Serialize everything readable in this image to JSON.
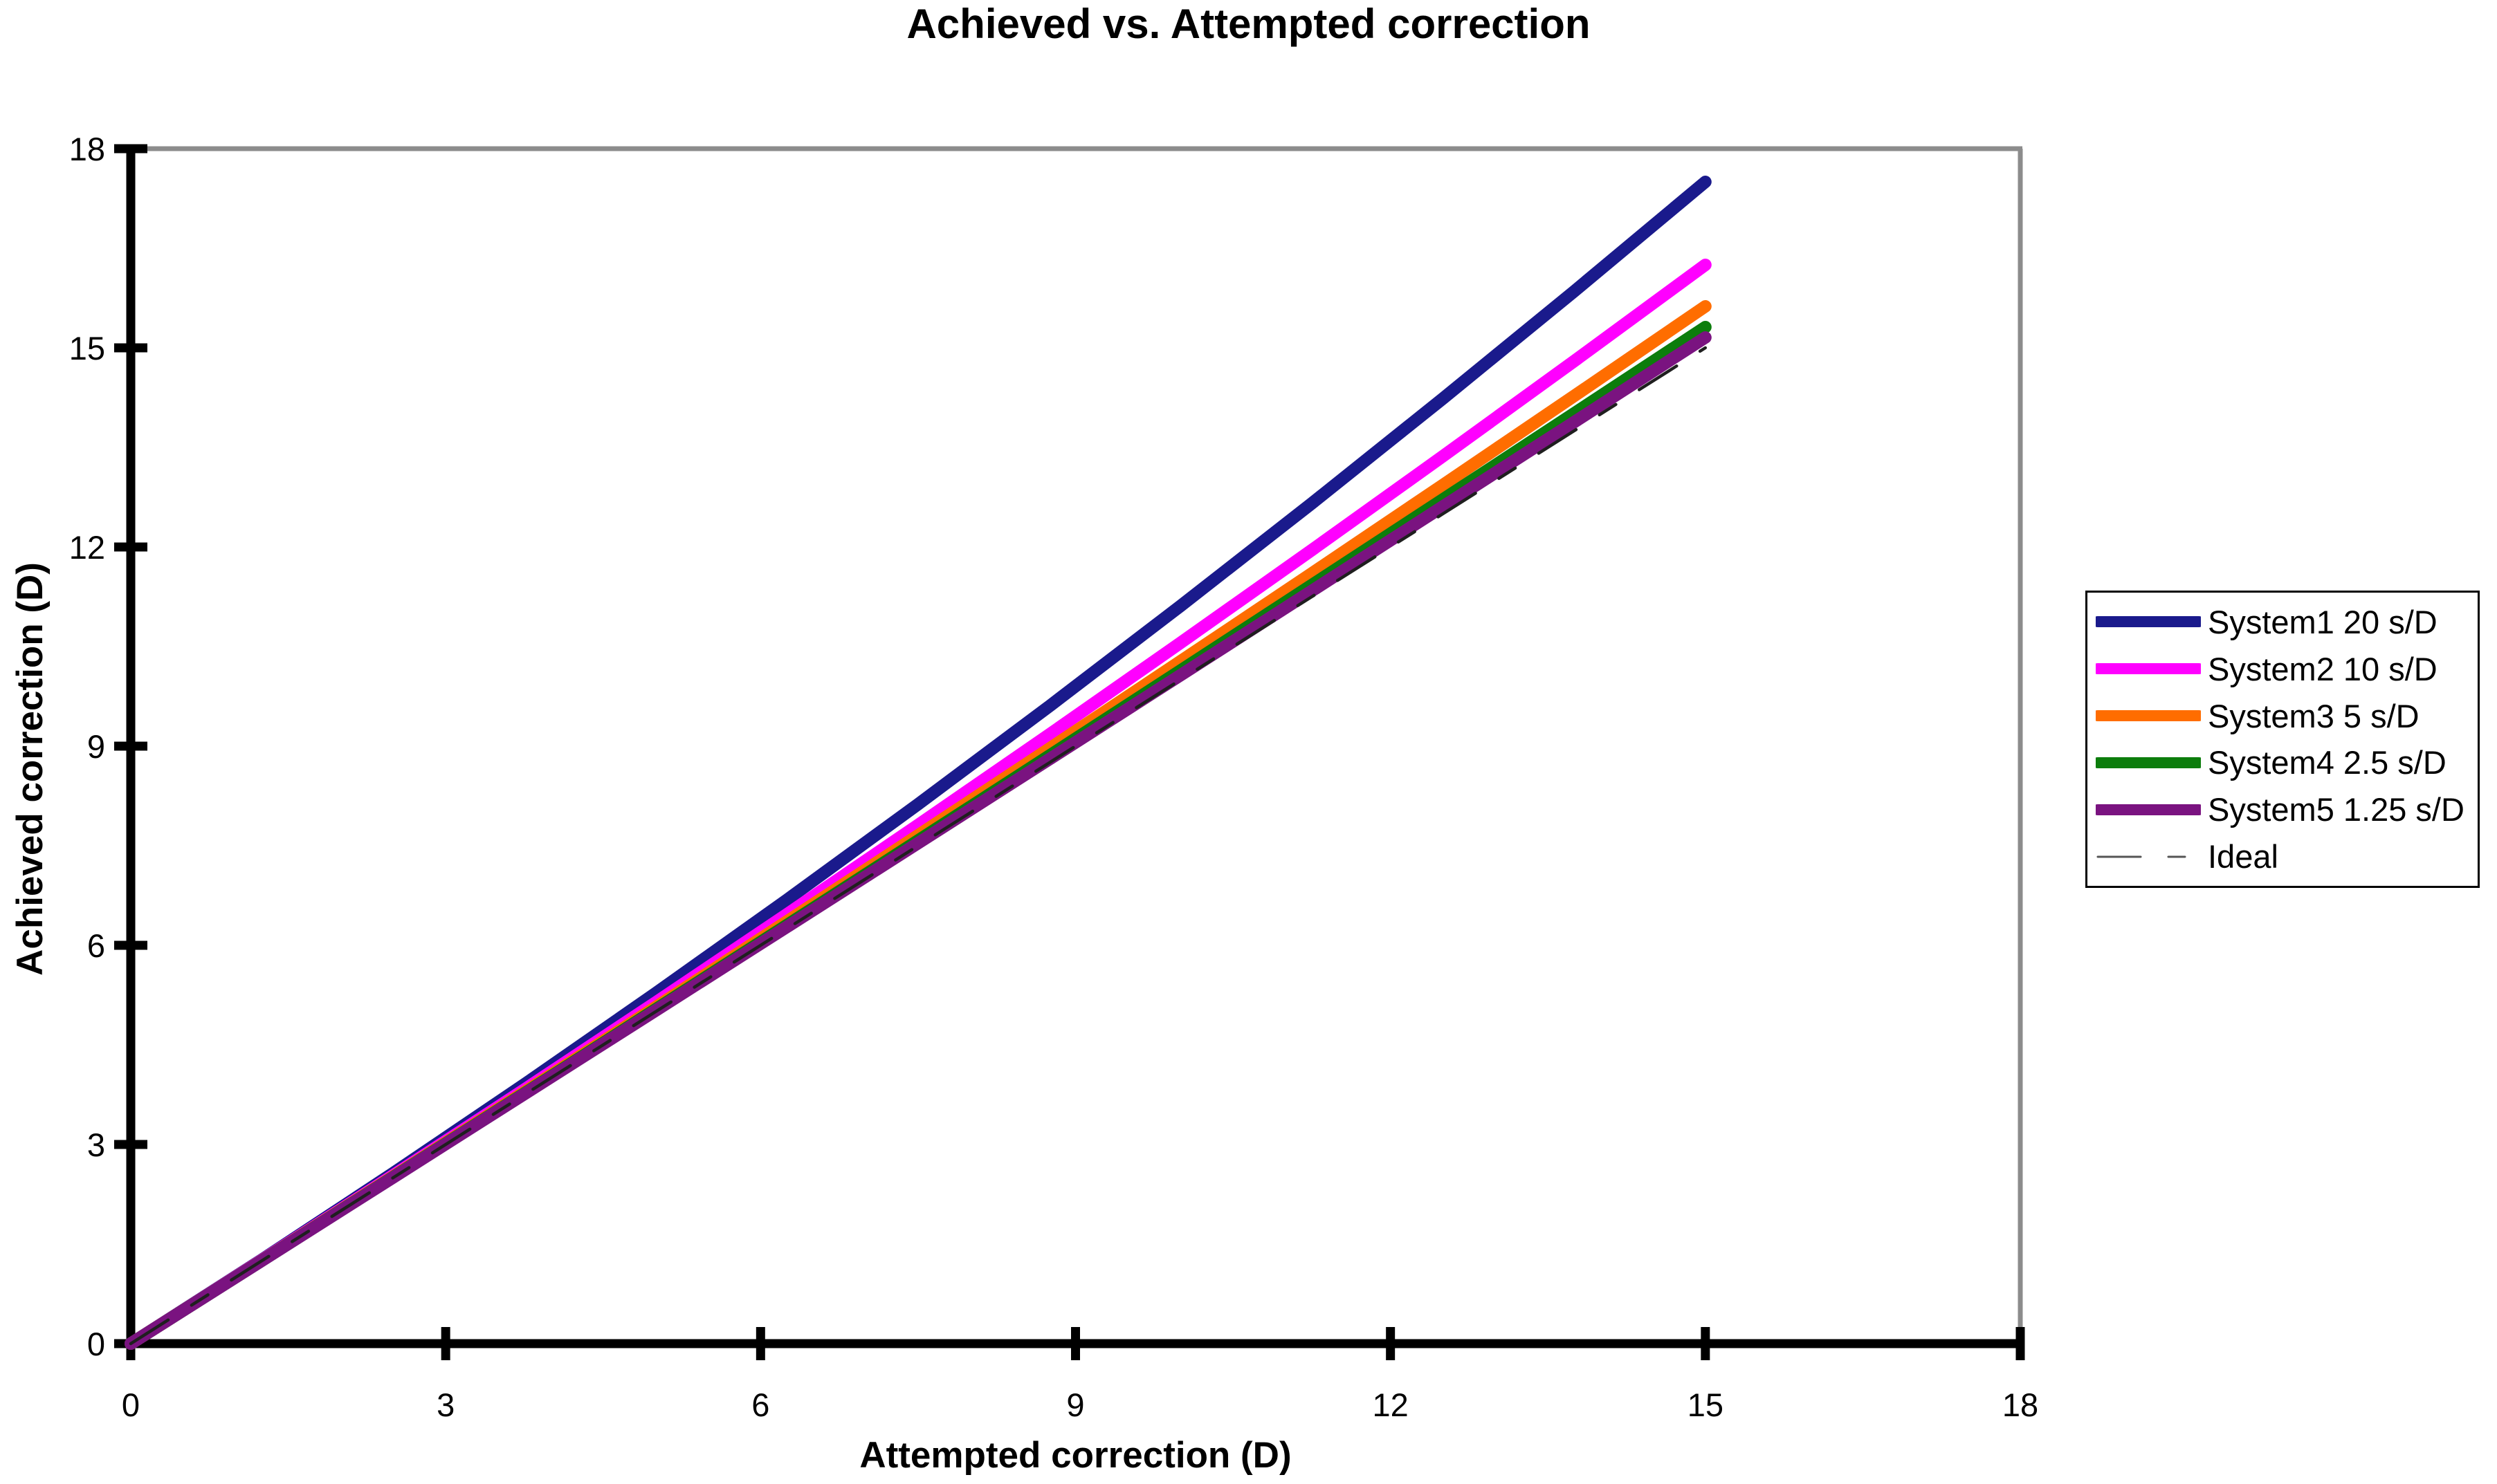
{
  "title": "Achieved vs. Attempted correction",
  "chart_data": {
    "type": "line",
    "title": "Achieved vs. Attempted correction",
    "xlabel": "Attempted correction (D)",
    "ylabel": "Achieved correction (D)",
    "xlim": [
      0,
      18
    ],
    "ylim": [
      0,
      18
    ],
    "x_ticks": [
      0,
      3,
      6,
      9,
      12,
      15,
      18
    ],
    "y_ticks": [
      0,
      3,
      6,
      9,
      12,
      15,
      18
    ],
    "grid": false,
    "legend_position": "right",
    "plot_border_color": "#8C8C8C",
    "axis_color": "#000000",
    "x": [
      0,
      1.25,
      2.5,
      3.75,
      5,
      6.25,
      7.5,
      8.75,
      10,
      11.25,
      12.5,
      13.75,
      15
    ],
    "series": [
      {
        "name": "System1 20 s/D",
        "color": "#1A1A8C",
        "width": 18,
        "dash": null,
        "y": [
          0,
          1.267,
          2.569,
          3.906,
          5.278,
          6.684,
          8.125,
          9.601,
          11.111,
          12.656,
          14.236,
          15.851,
          17.5
        ],
        "achieved_at_15": 17.5
      },
      {
        "name": "System2 10 s/D",
        "color": "#FF00FF",
        "width": 18,
        "dash": null,
        "y": [
          0,
          1.259,
          2.535,
          3.828,
          5.139,
          6.467,
          7.813,
          9.175,
          10.556,
          11.953,
          13.368,
          14.8,
          16.25
        ],
        "achieved_at_15": 16.25
      },
      {
        "name": "System3 5 s/D",
        "color": "#FF6D00",
        "width": 18,
        "dash": null,
        "y": [
          0,
          1.254,
          2.517,
          3.789,
          5.069,
          6.359,
          7.656,
          8.963,
          10.278,
          11.602,
          12.934,
          14.275,
          15.625
        ],
        "achieved_at_15": 15.625
      },
      {
        "name": "System4 2.5 s/D",
        "color": "#0C7D0C",
        "width": 18,
        "dash": null,
        "y": [
          0,
          1.252,
          2.509,
          3.77,
          5.035,
          6.304,
          7.578,
          8.856,
          10.139,
          11.426,
          12.717,
          14.013,
          15.313
        ],
        "achieved_at_15": 15.313
      },
      {
        "name": "System5 1.25 s/D",
        "color": "#7A1380",
        "width": 18,
        "dash": null,
        "y": [
          0,
          1.251,
          2.504,
          3.76,
          5.017,
          6.277,
          7.539,
          8.803,
          10.069,
          11.338,
          12.609,
          13.881,
          15.156
        ],
        "achieved_at_15": 15.156
      },
      {
        "name": "Ideal",
        "color": "#1F1F1F",
        "width": 4.5,
        "dash": "64 40 28 40",
        "y": [
          0,
          1.25,
          2.5,
          3.75,
          5,
          6.25,
          7.5,
          8.75,
          10,
          11.25,
          12.5,
          13.75,
          15
        ],
        "achieved_at_15": 15
      }
    ]
  }
}
